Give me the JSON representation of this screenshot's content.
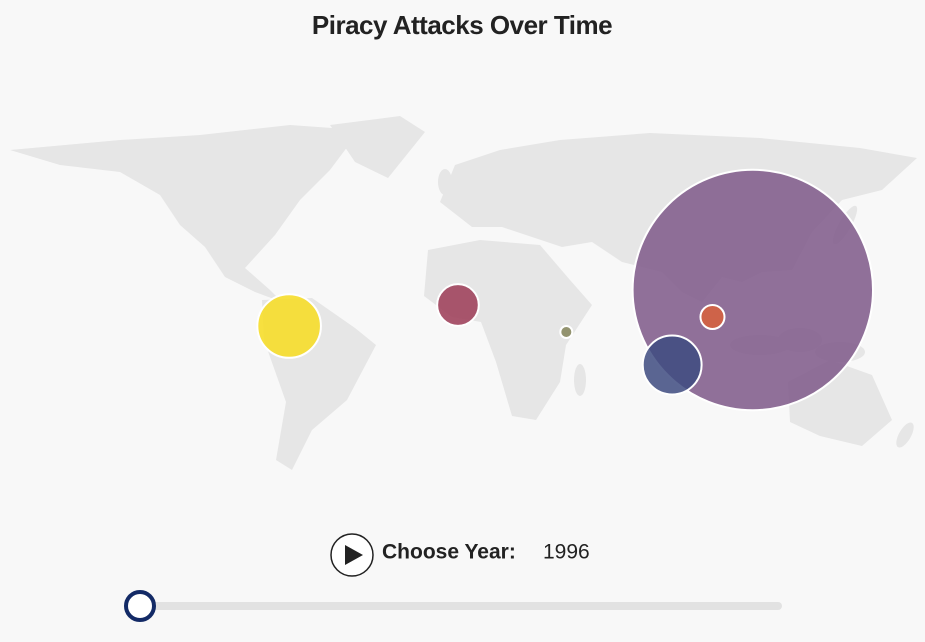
{
  "title": "Piracy Attacks Over Time",
  "controls": {
    "label": "Choose Year:",
    "year": 1996
  },
  "bubbles": [
    {
      "lon": -69,
      "lat": 3,
      "value": 14,
      "color": "#f7dc1f"
    },
    {
      "lon": -2,
      "lat": 10,
      "value": 6,
      "color": "#9b3a55"
    },
    {
      "lon": 41,
      "lat": 1,
      "value": 0.5,
      "color": "#848459"
    },
    {
      "lon": 115,
      "lat": 15,
      "value": 200,
      "color": "#7e5888"
    },
    {
      "lon": 99,
      "lat": 6,
      "value": 2,
      "color": "#d9603b"
    },
    {
      "lon": 83,
      "lat": -10,
      "value": 12,
      "color": "#3e4b80"
    }
  ]
}
